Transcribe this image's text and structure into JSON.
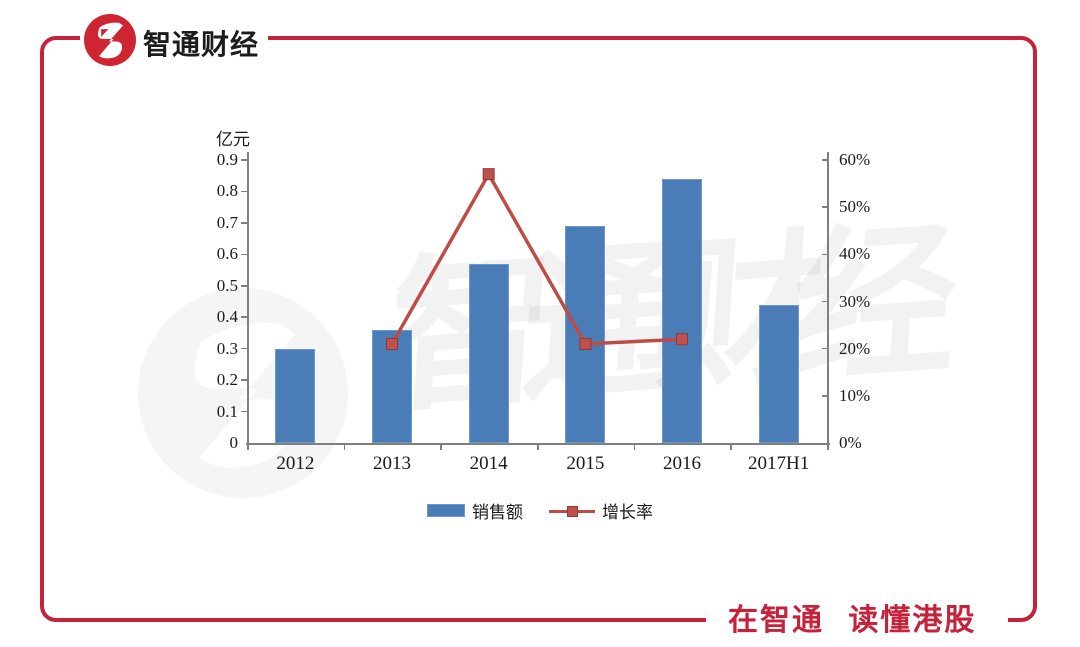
{
  "brand": {
    "name": "智通财经",
    "slogan": "在智通 读懂港股",
    "logo_icon": "zhitong-zg-monogram",
    "red": "#c5233c"
  },
  "watermark": {
    "text": "智通财经"
  },
  "chart_data": {
    "type": "bar",
    "subtype": "combo-bar-line",
    "categories": [
      "2012",
      "2013",
      "2014",
      "2015",
      "2016",
      "2017H1"
    ],
    "series": [
      {
        "name": "销售额",
        "type": "bar",
        "axis": "left",
        "color": "#4a7db8",
        "values": [
          0.3,
          0.36,
          0.57,
          0.69,
          0.84,
          0.44
        ]
      },
      {
        "name": "增长率",
        "type": "line",
        "axis": "right",
        "color": "#bf4b47",
        "marker": "square",
        "first_category": "2013",
        "values": [
          21,
          57,
          21,
          22
        ]
      }
    ],
    "left_axis": {
      "title": "亿元",
      "min": 0,
      "max": 0.9,
      "ticks": [
        "0",
        "0.1",
        "0.2",
        "0.3",
        "0.4",
        "0.5",
        "0.6",
        "0.7",
        "0.8",
        "0.9"
      ]
    },
    "right_axis": {
      "min": 0,
      "max": 60,
      "ticks": [
        "0%",
        "10%",
        "20%",
        "30%",
        "40%",
        "50%",
        "60%"
      ]
    },
    "legend": [
      {
        "label": "销售额",
        "swatch": "bar"
      },
      {
        "label": "增长率",
        "swatch": "line-marker"
      }
    ],
    "grid": false,
    "legend_position": "bottom-center"
  }
}
